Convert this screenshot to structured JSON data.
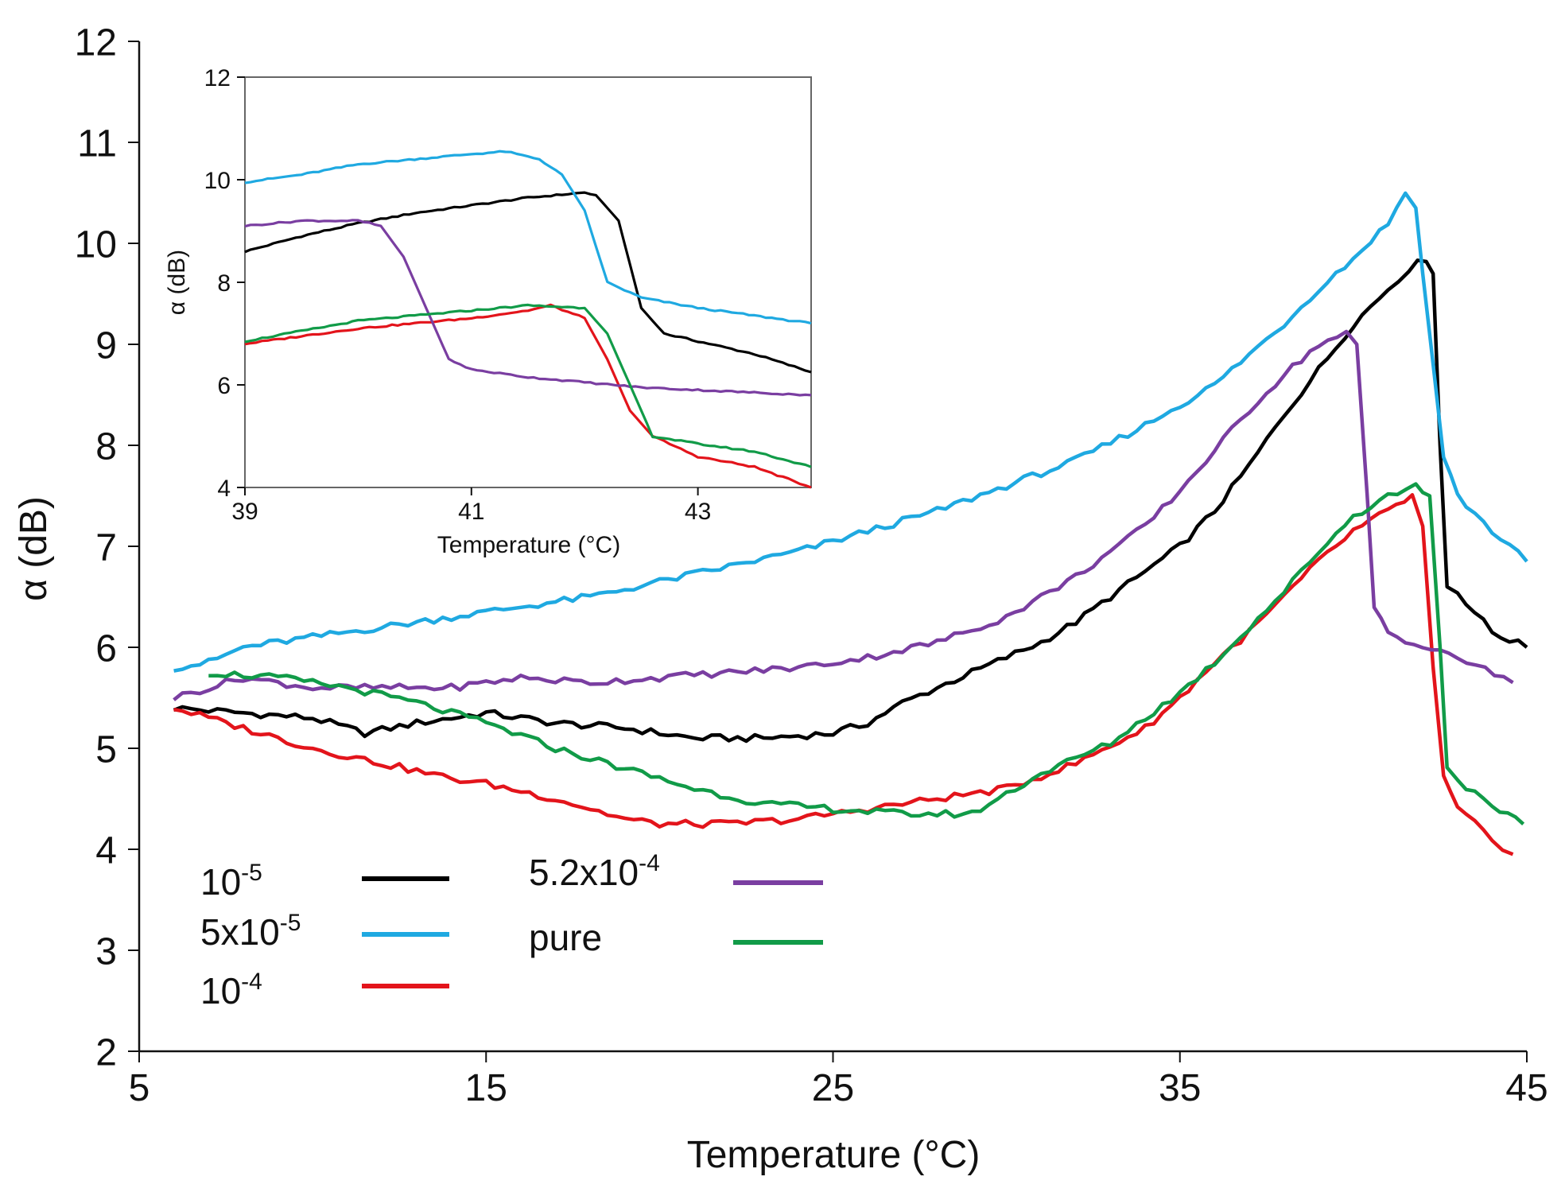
{
  "chart_data": [
    {
      "type": "line",
      "role": "main",
      "xlabel": "Temperature (°C)",
      "ylabel": "α (dB)",
      "xlim": [
        5,
        45
      ],
      "ylim": [
        2,
        12
      ],
      "xticks": [
        "5",
        "15",
        "25",
        "35",
        "45"
      ],
      "yticks": [
        "2",
        "3",
        "4",
        "5",
        "6",
        "7",
        "8",
        "9",
        "10",
        "11",
        "12"
      ],
      "grid": false,
      "legend_position": "bottom-left",
      "series": [
        {
          "name": "10",
          "exp": "-5",
          "color": "#000000",
          "points": [
            [
              6,
              5.4
            ],
            [
              8,
              5.35
            ],
            [
              10,
              5.3
            ],
            [
              11.5,
              5.15
            ],
            [
              13,
              5.25
            ],
            [
              15,
              5.35
            ],
            [
              17,
              5.25
            ],
            [
              19,
              5.2
            ],
            [
              21,
              5.1
            ],
            [
              23,
              5.1
            ],
            [
              25,
              5.15
            ],
            [
              26,
              5.25
            ],
            [
              27,
              5.45
            ],
            [
              28,
              5.6
            ],
            [
              29,
              5.75
            ],
            [
              30,
              5.9
            ],
            [
              31,
              6.05
            ],
            [
              32,
              6.25
            ],
            [
              33,
              6.5
            ],
            [
              34,
              6.75
            ],
            [
              35,
              7.0
            ],
            [
              36,
              7.35
            ],
            [
              37,
              7.8
            ],
            [
              38,
              8.3
            ],
            [
              39,
              8.75
            ],
            [
              40,
              9.2
            ],
            [
              41,
              9.55
            ],
            [
              41.6,
              9.75
            ],
            [
              42.1,
              9.85
            ],
            [
              42.3,
              9.7
            ],
            [
              42.5,
              8.0
            ],
            [
              42.7,
              6.6
            ],
            [
              43,
              6.55
            ],
            [
              43.5,
              6.35
            ],
            [
              44,
              6.15
            ],
            [
              45,
              6.0
            ]
          ]
        },
        {
          "name": "5x10",
          "exp": "-5",
          "color": "#1fa9e1",
          "points": [
            [
              6,
              5.8
            ],
            [
              7,
              5.85
            ],
            [
              8,
              6.0
            ],
            [
              10,
              6.1
            ],
            [
              12,
              6.2
            ],
            [
              14,
              6.3
            ],
            [
              16,
              6.4
            ],
            [
              18,
              6.5
            ],
            [
              20,
              6.65
            ],
            [
              22,
              6.8
            ],
            [
              24,
              6.95
            ],
            [
              26,
              7.15
            ],
            [
              28,
              7.35
            ],
            [
              30,
              7.6
            ],
            [
              32,
              7.85
            ],
            [
              34,
              8.2
            ],
            [
              36,
              8.6
            ],
            [
              37,
              8.9
            ],
            [
              38,
              9.2
            ],
            [
              39,
              9.55
            ],
            [
              40,
              9.85
            ],
            [
              41,
              10.2
            ],
            [
              41.5,
              10.5
            ],
            [
              41.8,
              10.35
            ],
            [
              42,
              9.7
            ],
            [
              42.3,
              8.8
            ],
            [
              42.6,
              7.9
            ],
            [
              43,
              7.5
            ],
            [
              44,
              7.15
            ],
            [
              45,
              6.85
            ]
          ]
        },
        {
          "name": "10",
          "exp": "-4",
          "color": "#e3141b",
          "points": [
            [
              6,
              5.4
            ],
            [
              8,
              5.2
            ],
            [
              10,
              5.0
            ],
            [
              12,
              4.85
            ],
            [
              14,
              4.7
            ],
            [
              15,
              4.65
            ],
            [
              17,
              4.5
            ],
            [
              19,
              4.3
            ],
            [
              20,
              4.25
            ],
            [
              22,
              4.25
            ],
            [
              24,
              4.3
            ],
            [
              26,
              4.4
            ],
            [
              28,
              4.5
            ],
            [
              30,
              4.6
            ],
            [
              32,
              4.85
            ],
            [
              34,
              5.2
            ],
            [
              35,
              5.5
            ],
            [
              36,
              5.85
            ],
            [
              37,
              6.15
            ],
            [
              38,
              6.5
            ],
            [
              39,
              6.85
            ],
            [
              40,
              7.15
            ],
            [
              41,
              7.35
            ],
            [
              41.7,
              7.5
            ],
            [
              42,
              7.2
            ],
            [
              42.3,
              5.8
            ],
            [
              42.6,
              4.7
            ],
            [
              43,
              4.4
            ],
            [
              44,
              4.1
            ],
            [
              44.6,
              3.95
            ]
          ]
        },
        {
          "name": "5.2x10",
          "exp": "-4",
          "color": "#7a3ea1",
          "points": [
            [
              6,
              5.5
            ],
            [
              8,
              5.7
            ],
            [
              10,
              5.6
            ],
            [
              12,
              5.6
            ],
            [
              14,
              5.6
            ],
            [
              16,
              5.7
            ],
            [
              18,
              5.65
            ],
            [
              20,
              5.7
            ],
            [
              22,
              5.75
            ],
            [
              24,
              5.8
            ],
            [
              26,
              5.9
            ],
            [
              28,
              6.05
            ],
            [
              30,
              6.3
            ],
            [
              32,
              6.7
            ],
            [
              34,
              7.2
            ],
            [
              35,
              7.55
            ],
            [
              36,
              7.95
            ],
            [
              37,
              8.35
            ],
            [
              38,
              8.7
            ],
            [
              39,
              9.0
            ],
            [
              39.8,
              9.1
            ],
            [
              40.1,
              9.0
            ],
            [
              40.4,
              7.5
            ],
            [
              40.6,
              6.4
            ],
            [
              41,
              6.15
            ],
            [
              42,
              6.0
            ],
            [
              43,
              5.9
            ],
            [
              44.6,
              5.65
            ]
          ]
        },
        {
          "name": "pure",
          "exp": "",
          "color": "#119b48",
          "points": [
            [
              7,
              5.75
            ],
            [
              9,
              5.7
            ],
            [
              11,
              5.6
            ],
            [
              13,
              5.45
            ],
            [
              15,
              5.25
            ],
            [
              17,
              5.0
            ],
            [
              19,
              4.8
            ],
            [
              21,
              4.6
            ],
            [
              23,
              4.45
            ],
            [
              25,
              4.4
            ],
            [
              27,
              4.35
            ],
            [
              29,
              4.35
            ],
            [
              30,
              4.55
            ],
            [
              31,
              4.75
            ],
            [
              32,
              4.9
            ],
            [
              33,
              5.05
            ],
            [
              34,
              5.3
            ],
            [
              35,
              5.55
            ],
            [
              36,
              5.85
            ],
            [
              37,
              6.2
            ],
            [
              38,
              6.55
            ],
            [
              39,
              6.95
            ],
            [
              40,
              7.3
            ],
            [
              41,
              7.5
            ],
            [
              41.8,
              7.6
            ],
            [
              42.2,
              7.5
            ],
            [
              42.5,
              6.0
            ],
            [
              42.7,
              4.8
            ],
            [
              43,
              4.7
            ],
            [
              44,
              4.4
            ],
            [
              44.9,
              4.25
            ]
          ]
        }
      ]
    },
    {
      "type": "line",
      "role": "inset",
      "xlabel": "Temperature (°C)",
      "ylabel": "α (dB)",
      "xlim": [
        39,
        44
      ],
      "ylim": [
        4,
        12
      ],
      "xticks": [
        "39",
        "41",
        "43"
      ],
      "yticks": [
        "4",
        "6",
        "8",
        "10",
        "12"
      ],
      "series": [
        {
          "color": "#000000",
          "points": [
            [
              39,
              8.6
            ],
            [
              39.5,
              8.9
            ],
            [
              40,
              9.15
            ],
            [
              40.5,
              9.35
            ],
            [
              41,
              9.5
            ],
            [
              41.5,
              9.65
            ],
            [
              42,
              9.75
            ],
            [
              42.1,
              9.7
            ],
            [
              42.3,
              9.2
            ],
            [
              42.5,
              7.5
            ],
            [
              42.7,
              7.0
            ],
            [
              43,
              6.85
            ],
            [
              43.5,
              6.6
            ],
            [
              44,
              6.25
            ]
          ]
        },
        {
          "color": "#1fa9e1",
          "points": [
            [
              39,
              9.95
            ],
            [
              39.5,
              10.1
            ],
            [
              40,
              10.3
            ],
            [
              40.5,
              10.4
            ],
            [
              41,
              10.5
            ],
            [
              41.3,
              10.55
            ],
            [
              41.6,
              10.4
            ],
            [
              41.8,
              10.1
            ],
            [
              42,
              9.4
            ],
            [
              42.2,
              8.0
            ],
            [
              42.5,
              7.7
            ],
            [
              43,
              7.5
            ],
            [
              43.5,
              7.35
            ],
            [
              44,
              7.2
            ]
          ]
        },
        {
          "color": "#e3141b",
          "points": [
            [
              39,
              6.8
            ],
            [
              39.5,
              6.95
            ],
            [
              40,
              7.1
            ],
            [
              40.5,
              7.2
            ],
            [
              41,
              7.3
            ],
            [
              41.5,
              7.45
            ],
            [
              41.7,
              7.55
            ],
            [
              42,
              7.3
            ],
            [
              42.2,
              6.5
            ],
            [
              42.4,
              5.5
            ],
            [
              42.6,
              5.0
            ],
            [
              43,
              4.6
            ],
            [
              43.5,
              4.4
            ],
            [
              44,
              4.0
            ]
          ]
        },
        {
          "color": "#7a3ea1",
          "points": [
            [
              39,
              9.1
            ],
            [
              39.5,
              9.2
            ],
            [
              40,
              9.2
            ],
            [
              40.2,
              9.1
            ],
            [
              40.4,
              8.5
            ],
            [
              40.6,
              7.5
            ],
            [
              40.8,
              6.5
            ],
            [
              41,
              6.3
            ],
            [
              41.5,
              6.15
            ],
            [
              42,
              6.05
            ],
            [
              42.5,
              5.95
            ],
            [
              43,
              5.9
            ],
            [
              44,
              5.8
            ]
          ]
        },
        {
          "color": "#119b48",
          "points": [
            [
              39,
              6.85
            ],
            [
              39.5,
              7.05
            ],
            [
              40,
              7.25
            ],
            [
              40.5,
              7.35
            ],
            [
              41,
              7.45
            ],
            [
              41.5,
              7.55
            ],
            [
              42,
              7.5
            ],
            [
              42.2,
              7.0
            ],
            [
              42.4,
              6.0
            ],
            [
              42.6,
              5.0
            ],
            [
              43,
              4.85
            ],
            [
              43.5,
              4.7
            ],
            [
              44,
              4.4
            ]
          ]
        }
      ]
    }
  ]
}
